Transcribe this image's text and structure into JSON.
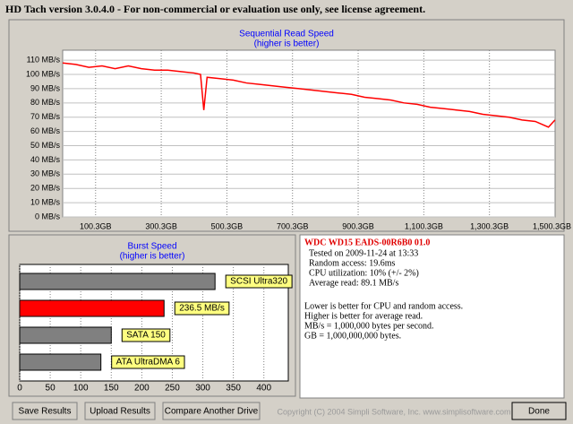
{
  "window": {
    "title": "HD Tach version 3.0.4.0  - For non-commercial or evaluation use only, see license agreement."
  },
  "chart_data": [
    {
      "type": "line",
      "title": "Sequential Read Speed",
      "subtitle": "(higher is better)",
      "color": "#ff0000",
      "grid": true,
      "x": [
        0,
        40,
        80,
        120,
        160,
        200,
        240,
        280,
        320,
        360,
        400,
        420,
        430,
        440,
        480,
        520,
        560,
        600,
        640,
        680,
        720,
        760,
        800,
        840,
        880,
        920,
        960,
        1000,
        1040,
        1080,
        1120,
        1160,
        1200,
        1240,
        1280,
        1320,
        1360,
        1400,
        1440,
        1480,
        1500
      ],
      "values": [
        108,
        107,
        105,
        106,
        104,
        106,
        104,
        103,
        103,
        102,
        101,
        100,
        75,
        98,
        97,
        96,
        94,
        93,
        92,
        91,
        90,
        89,
        88,
        87,
        86,
        84,
        83,
        82,
        80,
        79,
        77,
        76,
        75,
        74,
        72,
        71,
        70,
        68,
        67,
        63,
        68
      ],
      "xlim": [
        0,
        1500.3
      ],
      "ylim": [
        0,
        117
      ],
      "xticks": [
        {
          "value": 100.3,
          "label": "100.3GB"
        },
        {
          "value": 300.3,
          "label": "300.3GB"
        },
        {
          "value": 500.3,
          "label": "500.3GB"
        },
        {
          "value": 700.3,
          "label": "700.3GB"
        },
        {
          "value": 900.3,
          "label": "900.3GB"
        },
        {
          "value": 1100.3,
          "label": "1,100.3GB"
        },
        {
          "value": 1300.3,
          "label": "1,300.3GB"
        },
        {
          "value": 1500.3,
          "label": "1,500.3GB"
        }
      ],
      "yticks": [
        {
          "value": 0,
          "label": "0 MB/s"
        },
        {
          "value": 10,
          "label": "10 MB/s"
        },
        {
          "value": 20,
          "label": "20 MB/s"
        },
        {
          "value": 30,
          "label": "30 MB/s"
        },
        {
          "value": 40,
          "label": "40 MB/s"
        },
        {
          "value": 50,
          "label": "50 MB/s"
        },
        {
          "value": 60,
          "label": "60 MB/s"
        },
        {
          "value": 70,
          "label": "70 MB/s"
        },
        {
          "value": 80,
          "label": "80 MB/s"
        },
        {
          "value": 90,
          "label": "90 MB/s"
        },
        {
          "value": 100,
          "label": "100 MB/s"
        },
        {
          "value": 110,
          "label": "110 MB/s"
        }
      ]
    },
    {
      "type": "hbar",
      "title": "Burst Speed",
      "subtitle": "(higher is better)",
      "grid": true,
      "categories": [
        "SCSI Ultra320",
        null,
        "SATA 150",
        "ATA UltraDMA 6"
      ],
      "values": [
        320,
        236.5,
        150,
        133
      ],
      "value_labels": [
        null,
        "236.5 MB/s",
        null,
        null
      ],
      "colors": [
        "#808080",
        "#ff0000",
        "#808080",
        "#808080"
      ],
      "xlim": [
        0,
        440
      ],
      "xticks": [
        0,
        50,
        100,
        150,
        200,
        250,
        300,
        350,
        400
      ]
    }
  ],
  "info": {
    "drive": "WDC WD15 EADS-00R6B0 01.0",
    "lines": [
      "Tested on 2009-11-24 at 13:33",
      "Random access: 19.6ms",
      "CPU utilization: 10% (+/- 2%)",
      "Average read: 89.1 MB/s"
    ],
    "notes": [
      "Lower is better for CPU and random access.",
      "Higher is better for average read.",
      "MB/s = 1,000,000 bytes per second.",
      "GB = 1,000,000,000 bytes."
    ]
  },
  "buttons": [
    "Save Results",
    "Upload Results",
    "Compare Another Drive",
    "Done"
  ],
  "copyright": "Copyright (C) 2004 Simpli Software, Inc. www.simplisoftware.com"
}
